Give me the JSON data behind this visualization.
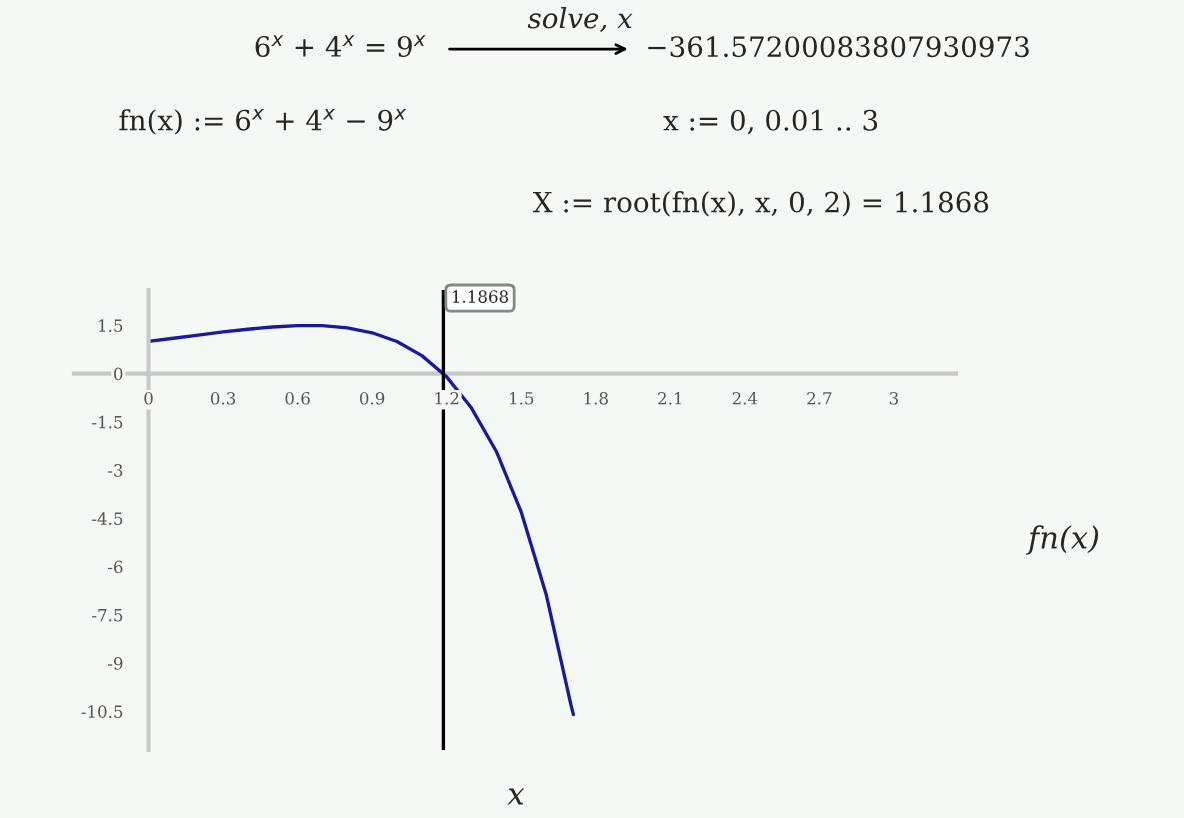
{
  "chart_data": {
    "type": "line",
    "xlabel": "x",
    "ylabel": "fn(x)",
    "x": [
      0,
      0.1,
      0.2,
      0.3,
      0.4,
      0.5,
      0.6,
      0.7,
      0.8,
      0.9,
      1.0,
      1.1,
      1.2,
      1.3,
      1.4,
      1.5,
      1.6,
      1.7,
      1.71
    ],
    "series": [
      {
        "color": "#1a1aa0",
        "values": [
          1.0,
          1.1,
          1.2,
          1.3,
          1.38,
          1.45,
          1.49,
          1.49,
          1.42,
          1.27,
          1.0,
          0.56,
          -0.1,
          -1.07,
          -2.42,
          -4.3,
          -6.85,
          -10.29,
          -10.6
        ]
      }
    ],
    "xlim": [
      -0.3,
      3.25
    ],
    "ylim": [
      -11.7,
      2.6
    ],
    "xticks": [
      0,
      0.3,
      0.6,
      0.9,
      1.2,
      1.5,
      1.8,
      2.1,
      2.4,
      2.7,
      3
    ],
    "yticks": [
      1.5,
      0,
      -1.5,
      -3,
      -4.5,
      -6,
      -7.5,
      -9,
      -10.5
    ],
    "ref_lines": [
      {
        "axis": "x",
        "value": 1.1868,
        "label": "1.1868",
        "color": "#000000"
      }
    ],
    "annotations": [
      "6$^{x}$ + 4$^{x}$ = 9$^{x}$",
      "solve, x",
      "−361.57200083807930973",
      "fn(x) := 6$^{x}$ + 4$^{x}$ − 9$^{x}$",
      "x := 0, 0.01 .. 3",
      "X := root(fn(x), x, 0, 2) = 1.1868"
    ],
    "grid": false,
    "legend": false,
    "marker": "none",
    "line_style": "solid"
  }
}
